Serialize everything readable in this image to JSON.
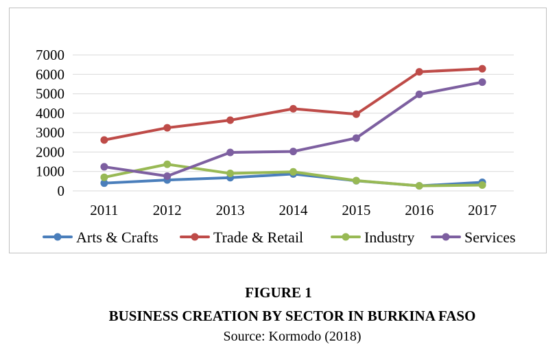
{
  "chart_data": {
    "type": "line",
    "title": "",
    "xlabel": "",
    "ylabel": "",
    "categories": [
      "2011",
      "2012",
      "2013",
      "2014",
      "2015",
      "2016",
      "2017"
    ],
    "yticks": [
      "0",
      "1000",
      "2000",
      "3000",
      "4000",
      "5000",
      "6000",
      "7000"
    ],
    "ylim": [
      0,
      7000
    ],
    "grid": true,
    "legend": "bottom",
    "series": [
      {
        "name": "Arts & Crafts",
        "color": "#4a7ebb",
        "values": [
          400,
          560,
          680,
          870,
          520,
          260,
          440
        ]
      },
      {
        "name": "Trade & Retail",
        "color": "#be4b48",
        "values": [
          2620,
          3250,
          3640,
          4230,
          3950,
          6130,
          6290
        ]
      },
      {
        "name": "Industry",
        "color": "#98b954",
        "values": [
          700,
          1370,
          900,
          980,
          530,
          260,
          300
        ]
      },
      {
        "name": "Services",
        "color": "#7d5fa0",
        "values": [
          1240,
          760,
          1980,
          2030,
          2720,
          4970,
          5600
        ]
      }
    ]
  },
  "caption": {
    "figure_number": "FIGURE 1",
    "title": "BUSINESS CREATION BY SECTOR IN BURKINA FASO",
    "source": "Source: Kormodo (2018)"
  }
}
